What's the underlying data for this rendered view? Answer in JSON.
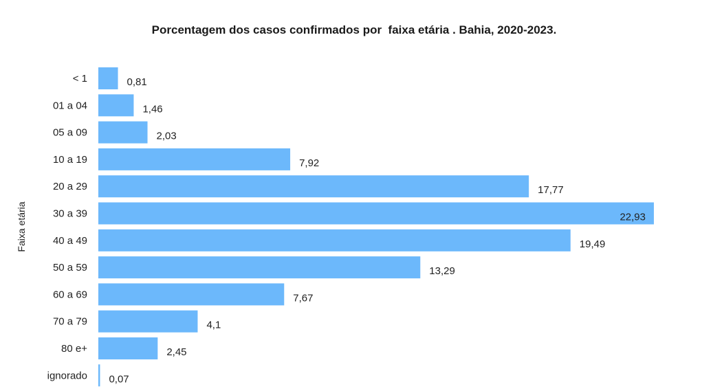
{
  "chart_data": {
    "type": "bar",
    "orientation": "horizontal",
    "title": "Porcentagem dos casos confirmados por  faixa etária . Bahia, 2020-2023.",
    "ylabel": "Faixa etária",
    "xlabel": "",
    "categories": [
      "< 1",
      "01 a 04",
      "05 a 09",
      "10 a 19",
      "20 a 29",
      "30 a 39",
      "40 a 49",
      "50 a 59",
      "60 a 69",
      "70 a 79",
      "80 e+",
      "ignorado"
    ],
    "values": [
      0.81,
      1.46,
      2.03,
      7.92,
      17.77,
      22.93,
      19.49,
      13.29,
      7.67,
      4.1,
      2.45,
      0.07
    ],
    "value_labels": [
      "0,81",
      "1,46",
      "2,03",
      "7,92",
      "17,77",
      "22,93",
      "19,49",
      "13,29",
      "7,67",
      "4,1",
      "2,45",
      "0,07"
    ],
    "xlim": [
      0,
      22.93
    ],
    "grid": false,
    "bar_color": "#6cb8fb"
  }
}
